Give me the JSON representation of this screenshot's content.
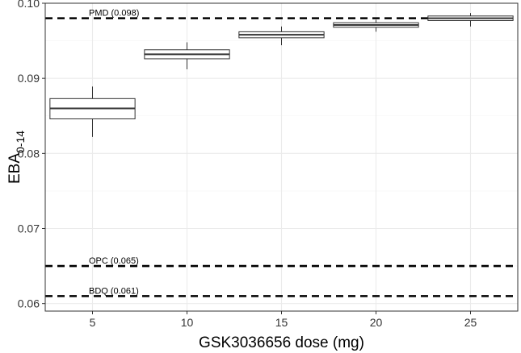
{
  "chart_data": {
    "type": "box",
    "xlabel": "GSK3036656 dose (mg)",
    "ylabel_main": "EBA",
    "ylabel_sub": "0-14",
    "ylim": [
      0.059,
      0.1
    ],
    "grid": true,
    "x_ticks": [
      5,
      10,
      15,
      20,
      25
    ],
    "y_ticks": [
      0.06,
      0.07,
      0.08,
      0.09,
      0.1
    ],
    "y_tick_labels": [
      "0.06",
      "0.07",
      "0.08",
      "0.09",
      "0.10"
    ],
    "boxes": [
      {
        "x": 5,
        "whisker_low": 0.0822,
        "q1": 0.0846,
        "median": 0.086,
        "q3": 0.0873,
        "whisker_high": 0.0889
      },
      {
        "x": 10,
        "whisker_low": 0.0912,
        "q1": 0.0926,
        "median": 0.0932,
        "q3": 0.0938,
        "whisker_high": 0.0948
      },
      {
        "x": 15,
        "whisker_low": 0.0944,
        "q1": 0.0954,
        "median": 0.0958,
        "q3": 0.0962,
        "whisker_high": 0.0969
      },
      {
        "x": 20,
        "whisker_low": 0.0962,
        "q1": 0.0968,
        "median": 0.0971,
        "q3": 0.0974,
        "whisker_high": 0.0978
      },
      {
        "x": 25,
        "whisker_low": 0.0969,
        "q1": 0.0977,
        "median": 0.098,
        "q3": 0.0983,
        "whisker_high": 0.0987
      }
    ],
    "reference_lines": [
      {
        "label": "PMD (0.098)",
        "value": 0.098
      },
      {
        "label": "OPC (0.065)",
        "value": 0.065
      },
      {
        "label": "BDQ (0.061)",
        "value": 0.061
      }
    ]
  }
}
